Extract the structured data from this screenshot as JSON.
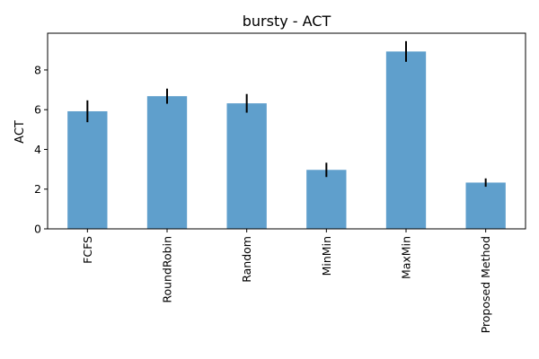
{
  "chart_data": {
    "type": "bar",
    "title": "bursty - ACT",
    "xlabel": "",
    "ylabel": "ACT",
    "categories": [
      "FCFS",
      "RoundRobin",
      "Random",
      "MinMin",
      "MaxMin",
      "Proposed Method"
    ],
    "values": [
      5.92,
      6.68,
      6.32,
      2.97,
      8.93,
      2.33
    ],
    "errors": [
      0.55,
      0.38,
      0.47,
      0.36,
      0.52,
      0.21
    ],
    "ylim": [
      0,
      9.85
    ],
    "yticks": [
      0,
      2,
      4,
      6,
      8
    ],
    "grid": false,
    "legend": "none",
    "bar_color": "#5f9fcc",
    "error_color": "#000000"
  }
}
